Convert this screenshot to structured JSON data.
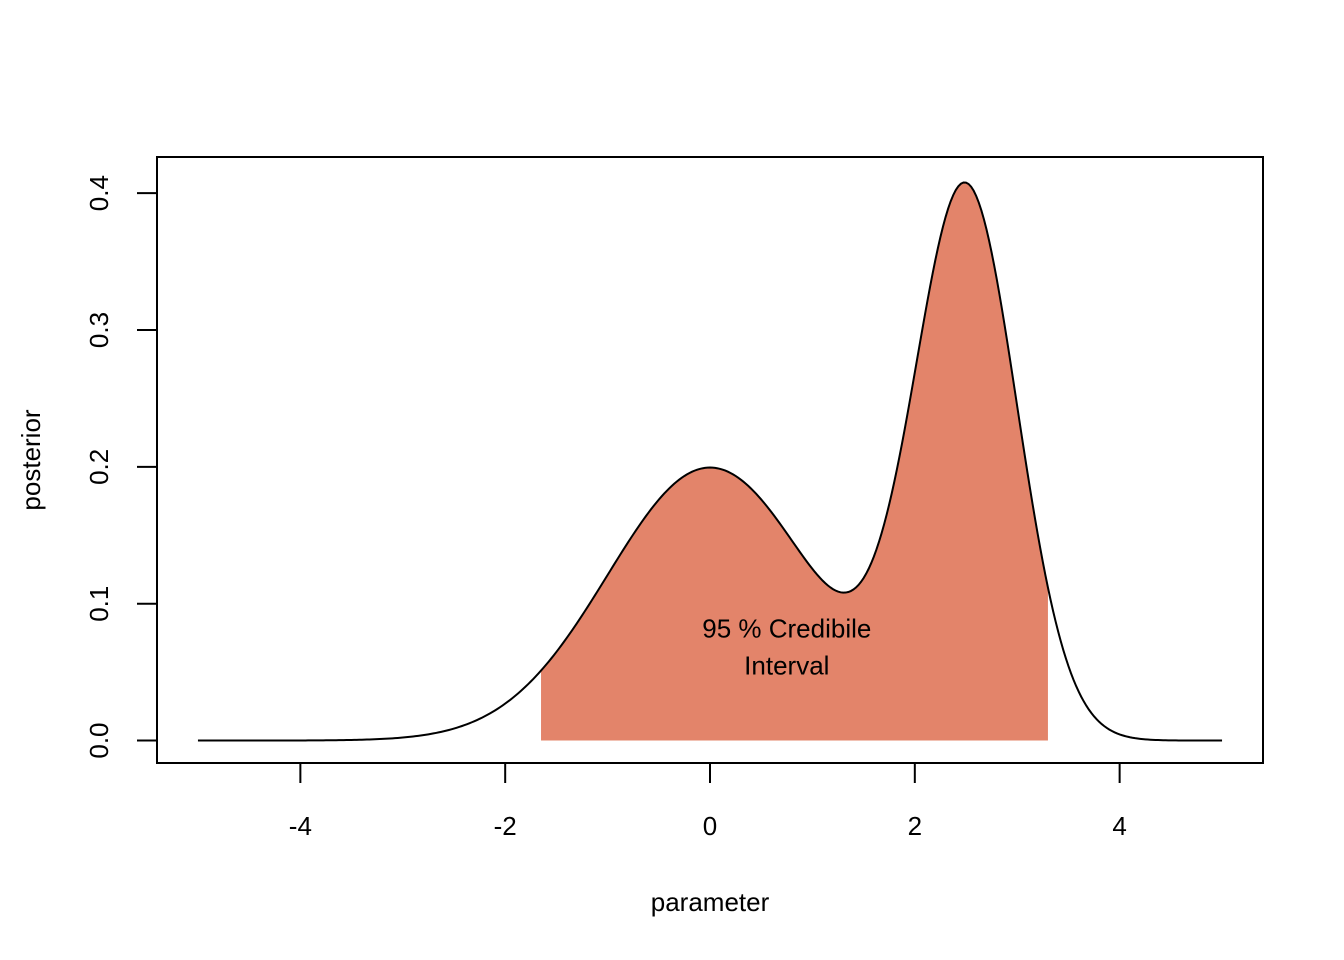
{
  "chart_data": {
    "type": "area",
    "xlabel": "parameter",
    "ylabel": "posterior",
    "xlim": [
      -5.4,
      5.4
    ],
    "ylim": [
      -0.0164,
      0.4264
    ],
    "x_ticks": [
      -4,
      -2,
      0,
      2,
      4
    ],
    "x_tick_labels": [
      "-4",
      "-2",
      "0",
      "2",
      "4"
    ],
    "y_ticks": [
      0.0,
      0.1,
      0.2,
      0.3,
      0.4
    ],
    "y_tick_labels": [
      "0.0",
      "0.1",
      "0.2",
      "0.3",
      "0.4"
    ],
    "curve": {
      "x_range": [
        -5,
        5
      ],
      "points": 401,
      "components": [
        {
          "weight": 0.5,
          "mean": 0.0,
          "sd": 1.0
        },
        {
          "weight": 0.5,
          "mean": 2.5,
          "sd": 0.5
        }
      ]
    },
    "shaded_interval": {
      "from": -1.65,
      "to": 3.3
    },
    "annotation": {
      "lines": [
        "95 % Credibile",
        "Interval"
      ],
      "x": 0.75,
      "y": 0.068
    },
    "grid": false,
    "colors": {
      "fill": "#e3846a",
      "line": "#000000",
      "frame": "#000000"
    }
  }
}
